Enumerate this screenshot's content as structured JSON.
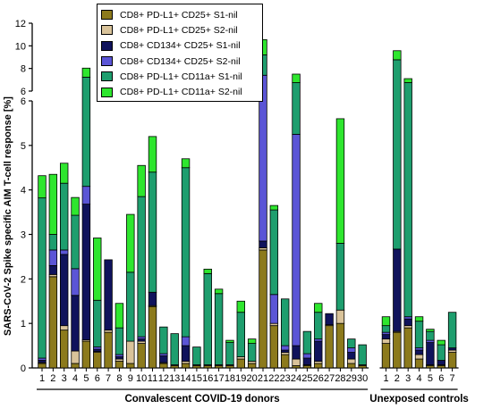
{
  "chart_data": {
    "type": "bar",
    "stacked": true,
    "ylabel": "SARS-CoV-2 Spike specific AIM T-cell response [%]",
    "axis": {
      "lower_range": [
        0,
        6
      ],
      "lower_ticks": [
        "0",
        "1",
        "2",
        "3",
        "4",
        "5",
        "6"
      ],
      "upper_range": [
        6,
        12
      ],
      "upper_ticks": [
        "6",
        "8",
        "10",
        "12"
      ],
      "axis_break_at": 6
    },
    "groups": [
      {
        "label": "Convalescent COVID-19 donors",
        "categories": [
          "1",
          "2",
          "3",
          "4",
          "5",
          "6",
          "7",
          "8",
          "9",
          "10",
          "11",
          "12",
          "13",
          "14",
          "15",
          "16",
          "17",
          "18",
          "19",
          "20",
          "21",
          "22",
          "23",
          "24",
          "25",
          "26",
          "27",
          "28",
          "29",
          "30"
        ]
      },
      {
        "label": "Unexposed controls",
        "categories": [
          "1",
          "2",
          "3",
          "4",
          "5",
          "6",
          "7"
        ]
      }
    ],
    "series": [
      {
        "name": "CD8+ PD-L1+ CD25+ S1-nil",
        "color": "#8c7a1c",
        "values": [
          0.1,
          2.05,
          0.85,
          0.1,
          0.6,
          0.35,
          0.8,
          0.15,
          0.1,
          0.55,
          1.38,
          0.1,
          0.05,
          0.1,
          0.05,
          0.05,
          0.05,
          0.05,
          0.2,
          0.1,
          2.65,
          0.95,
          0.3,
          0.05,
          0.05,
          0.1,
          0.95,
          1.0,
          0.1,
          0.05,
          0.55,
          0.8,
          0.9,
          0.2,
          0.05,
          0.05,
          0.35
        ]
      },
      {
        "name": "CD8+ PD-L1+ CD25+ S2-nil",
        "color": "#d9c39a",
        "values": [
          0.02,
          0.05,
          0.1,
          0.28,
          0.03,
          0.02,
          0.05,
          0.05,
          0.5,
          0.05,
          0.02,
          0.02,
          0.02,
          0.05,
          0.02,
          0.02,
          0.02,
          0.02,
          0.05,
          0.05,
          0.05,
          0.05,
          0.05,
          0.15,
          0.02,
          0.05,
          0.02,
          0.3,
          0.1,
          0.02,
          0.1,
          0.02,
          0.05,
          0.1,
          0.02,
          0.02,
          0.05
        ]
      },
      {
        "name": "CD8+ CD134+ CD25+ S1-nil",
        "color": "#10135c",
        "values": [
          0.05,
          0.2,
          1.6,
          1.25,
          3.05,
          0.05,
          1.58,
          0.05,
          0.0,
          0.05,
          0.3,
          0.15,
          0.0,
          0.35,
          0.0,
          0.0,
          0.0,
          0.0,
          0.0,
          0.0,
          0.15,
          0.0,
          0.05,
          0.3,
          0.15,
          0.45,
          0.25,
          0.0,
          0.15,
          0.0,
          0.1,
          1.85,
          0.15,
          0.1,
          0.5,
          0.1,
          0.05
        ]
      },
      {
        "name": "CD8+ CD134+ CD25+ S2-nil",
        "color": "#5b55d6",
        "values": [
          0.05,
          0.35,
          0.1,
          0.6,
          0.4,
          0.05,
          0.0,
          0.05,
          0.0,
          0.05,
          0.0,
          0.05,
          0.0,
          0.2,
          0.0,
          0.0,
          0.0,
          0.0,
          0.0,
          0.0,
          4.55,
          0.65,
          0.1,
          4.75,
          0.1,
          0.05,
          0.0,
          0.0,
          0.1,
          0.0,
          0.05,
          0.0,
          0.05,
          0.05,
          0.05,
          0.0,
          0.0
        ]
      },
      {
        "name": "CD8+ PD-L1+ CD11a+ S1-nil",
        "color": "#1e9e6e",
        "values": [
          3.6,
          0.35,
          1.5,
          1.2,
          3.15,
          1.05,
          0.0,
          0.6,
          1.55,
          3.15,
          2.7,
          0.6,
          0.7,
          3.8,
          0.4,
          2.05,
          1.6,
          0.5,
          1.0,
          0.4,
          1.8,
          1.9,
          1.05,
          1.5,
          0.5,
          0.6,
          0.0,
          1.5,
          0.2,
          0.45,
          0.15,
          6.1,
          5.6,
          0.6,
          0.2,
          0.35,
          0.8
        ]
      },
      {
        "name": "CD8+ PD-L1+ CD11a+ S2-nil",
        "color": "#2ee62e",
        "values": [
          0.5,
          1.35,
          0.45,
          0.4,
          0.8,
          1.4,
          0.0,
          0.55,
          1.3,
          0.7,
          0.8,
          0.0,
          0.0,
          0.2,
          0.0,
          0.1,
          0.1,
          0.05,
          0.25,
          0.1,
          1.35,
          0.1,
          0.0,
          0.75,
          0.0,
          0.2,
          0.0,
          2.8,
          0.0,
          0.0,
          0.2,
          0.8,
          0.35,
          0.1,
          0.05,
          0.1,
          0.0
        ]
      }
    ]
  }
}
